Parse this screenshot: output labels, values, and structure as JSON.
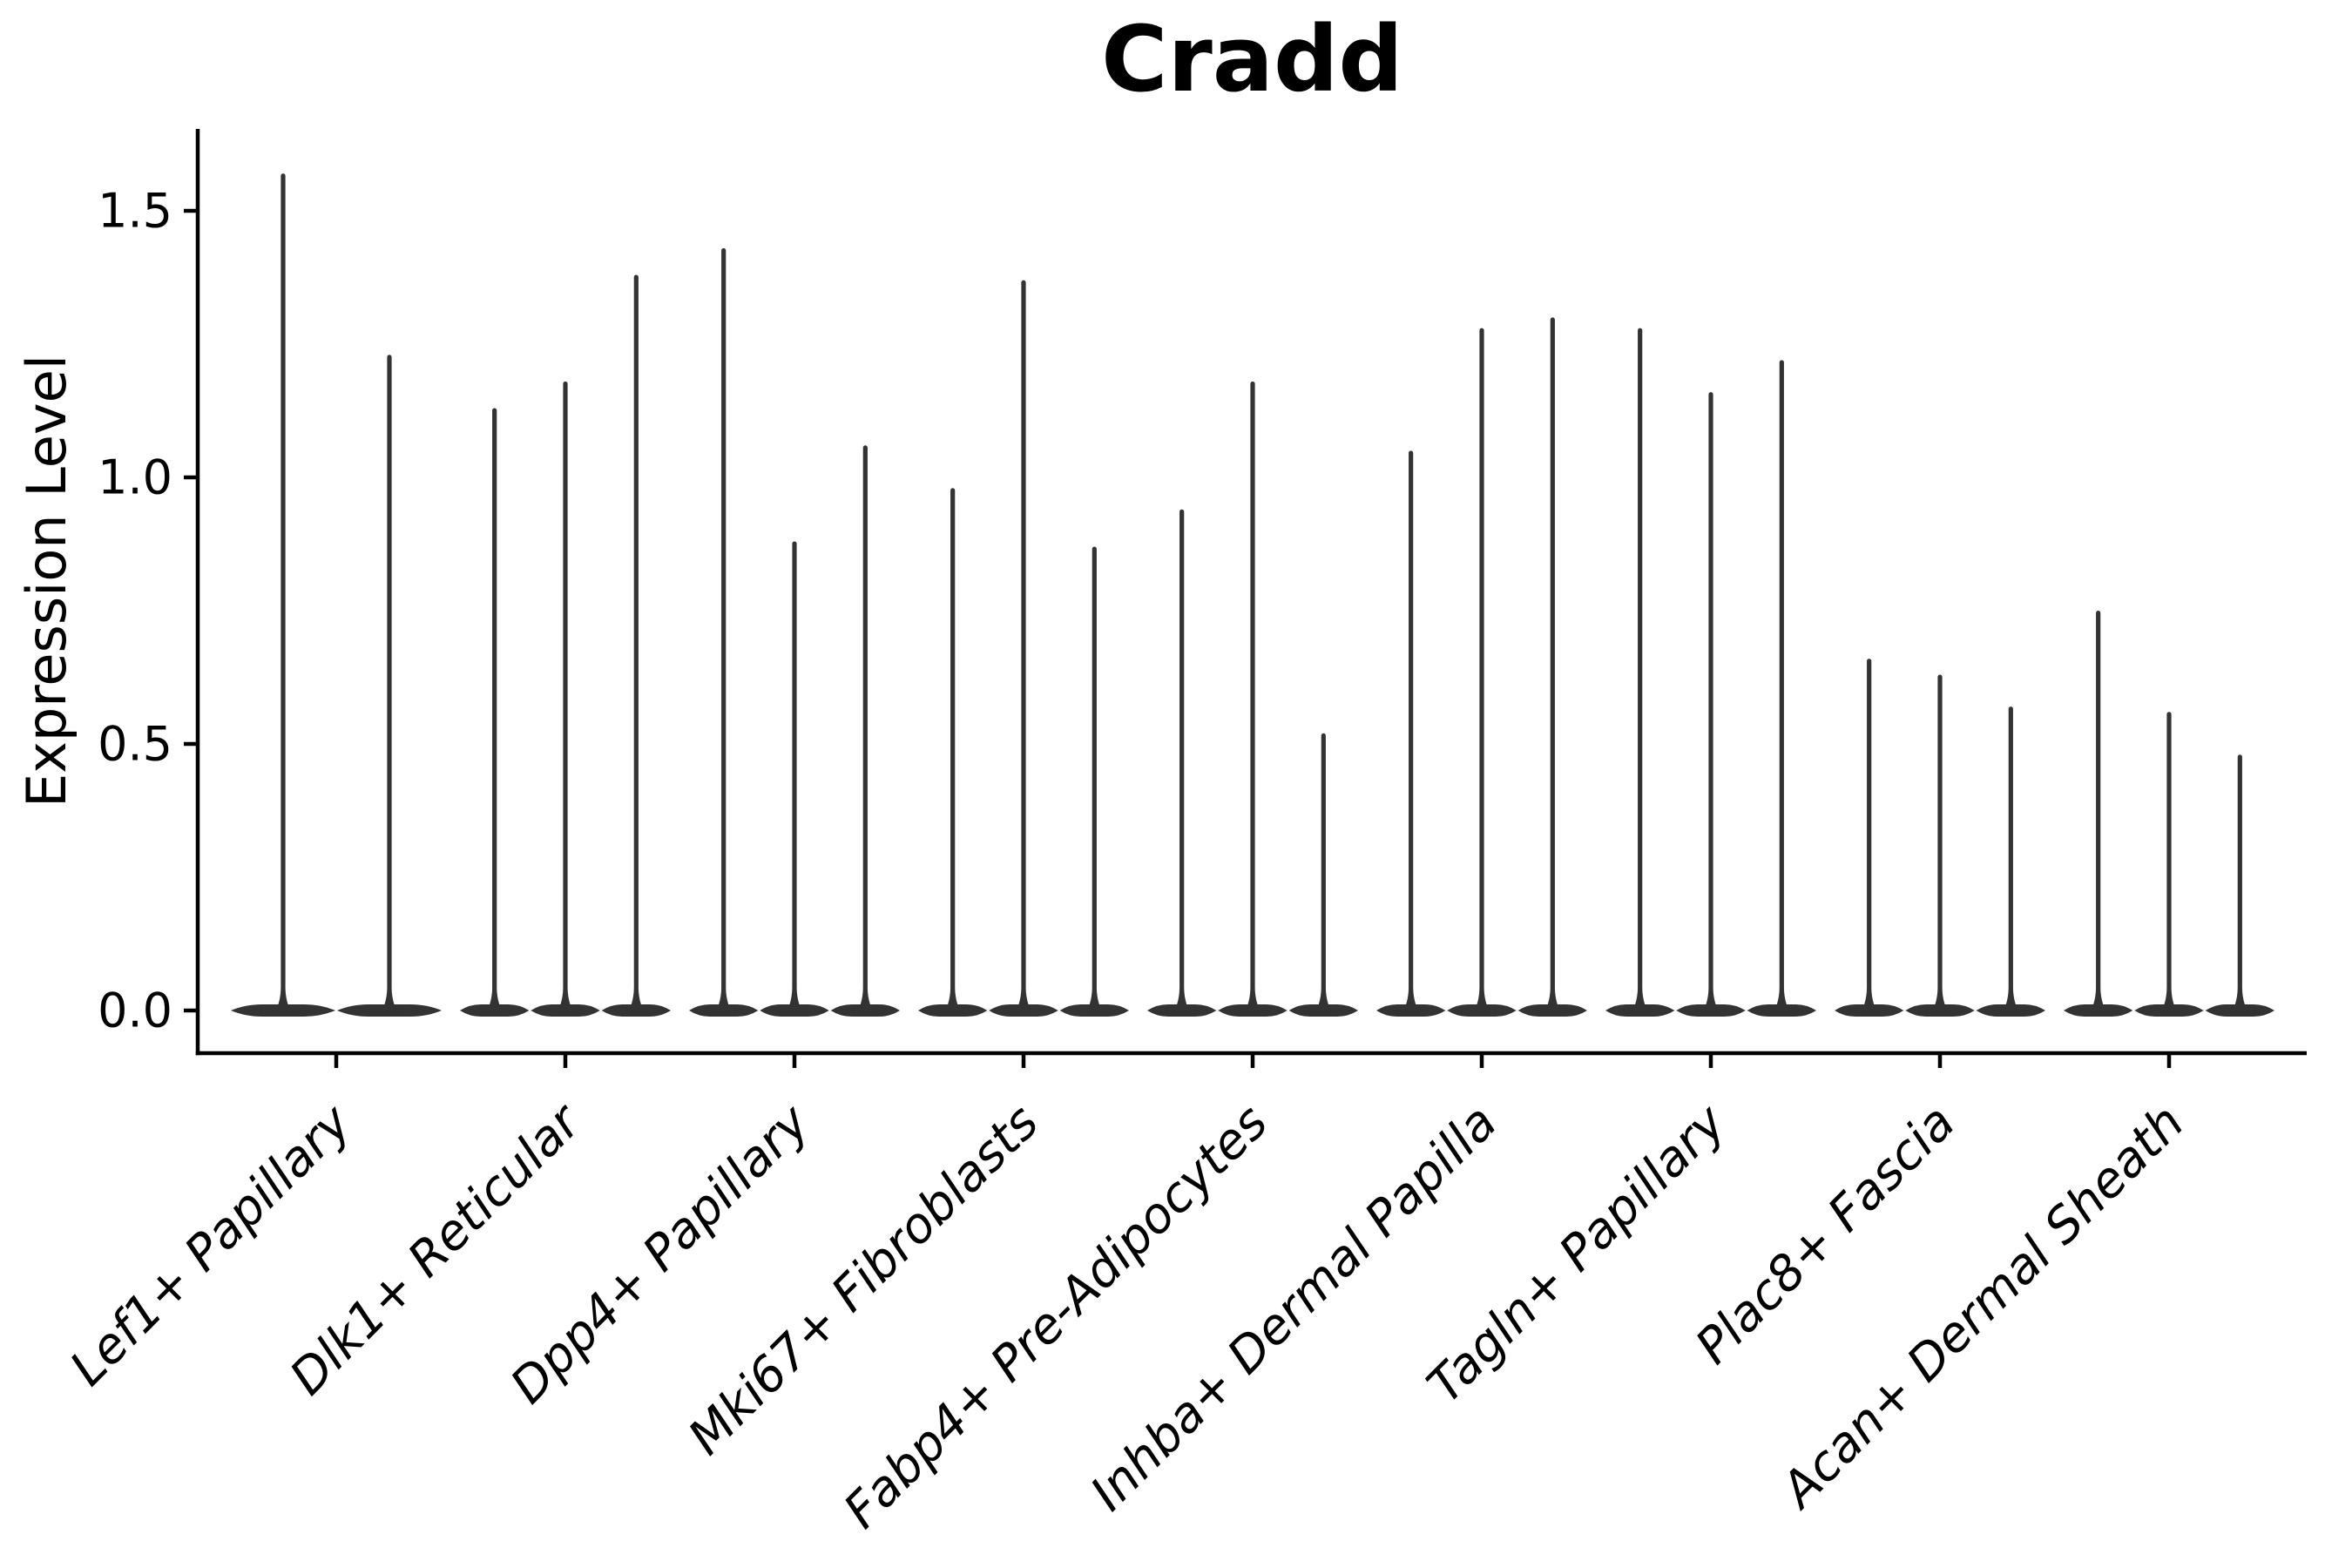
{
  "chart_data": {
    "type": "violin",
    "title": "Cradd",
    "ylabel": "Expression Level",
    "xlabel": "",
    "ytick_labels": [
      "0.0",
      "0.5",
      "1.0",
      "1.5"
    ],
    "ytick_values": [
      0.0,
      0.5,
      1.0,
      1.5
    ],
    "ylim": [
      -0.08,
      1.66
    ],
    "grid": false,
    "legend_position": "none",
    "x_tick_rotation_deg": 45,
    "x_tick_style": "italic",
    "categories": [
      "Lef1+ Papillary",
      "Dlk1+ Reticular",
      "Dpp4+ Papillary",
      "Mki67+ Fibroblasts",
      "Fabp4+ Pre-Adipocytes",
      "Inhba+ Dermal Papilla",
      "Tagln+ Papillary",
      "Plac8+ Fascia",
      "Acan+ Dermal Sheath"
    ],
    "groups": [
      {
        "category": "Lef1+ Papillary",
        "violin_maxima": [
          1.57,
          1.23
        ]
      },
      {
        "category": "Dlk1+ Reticular",
        "violin_maxima": [
          1.13,
          1.18,
          1.38
        ]
      },
      {
        "category": "Dpp4+ Papillary",
        "violin_maxima": [
          1.43,
          0.88,
          1.06
        ]
      },
      {
        "category": "Mki67+ Fibroblasts",
        "violin_maxima": [
          0.98,
          1.37,
          0.87
        ]
      },
      {
        "category": "Fabp4+ Pre-Adipocytes",
        "violin_maxima": [
          0.94,
          1.18,
          0.52
        ]
      },
      {
        "category": "Inhba+ Dermal Papilla",
        "violin_maxima": [
          1.05,
          1.28,
          1.3
        ]
      },
      {
        "category": "Tagln+ Papillary",
        "violin_maxima": [
          1.28,
          1.16,
          1.22
        ]
      },
      {
        "category": "Plac8+ Fascia",
        "violin_maxima": [
          0.66,
          0.63,
          0.57
        ]
      },
      {
        "category": "Acan+ Dermal Sheath",
        "violin_maxima": [
          0.75,
          0.56,
          0.48
        ]
      }
    ],
    "violin_baseline_value": 0.0,
    "colors": {
      "violin": "#333333",
      "axis": "#000000",
      "text": "#000000",
      "background": "#ffffff"
    }
  }
}
